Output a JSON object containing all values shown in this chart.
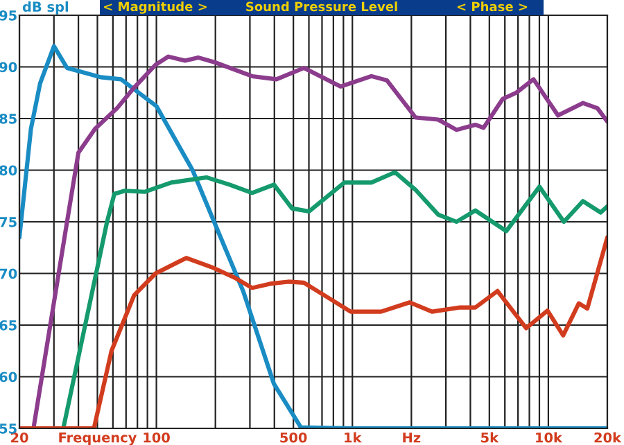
{
  "chart_data": {
    "type": "line",
    "title": "Sound Pressure Level",
    "ylabel": "dB spl",
    "annotations": [
      "< Magnitude >",
      "< Phase >"
    ],
    "log": "x",
    "grid": true,
    "legend": false,
    "marker": "none",
    "line_style": "solid",
    "xlim": [
      20,
      20000
    ],
    "ylim": [
      55,
      95
    ],
    "xticks": [
      {
        "value": 20,
        "label": "20"
      },
      {
        "value": 30,
        "label": null
      },
      {
        "value": 40,
        "label": null
      },
      {
        "value": 50,
        "label": "Frequency"
      },
      {
        "value": 60,
        "label": null
      },
      {
        "value": 70,
        "label": null
      },
      {
        "value": 80,
        "label": null
      },
      {
        "value": 90,
        "label": null
      },
      {
        "value": 100,
        "label": "100"
      },
      {
        "value": 200,
        "label": null
      },
      {
        "value": 300,
        "label": null
      },
      {
        "value": 400,
        "label": null
      },
      {
        "value": 500,
        "label": "500"
      },
      {
        "value": 600,
        "label": null
      },
      {
        "value": 700,
        "label": null
      },
      {
        "value": 800,
        "label": null
      },
      {
        "value": 900,
        "label": null
      },
      {
        "value": 1000,
        "label": "1k"
      },
      {
        "value": 2000,
        "label": "Hz"
      },
      {
        "value": 3000,
        "label": null
      },
      {
        "value": 4000,
        "label": null
      },
      {
        "value": 5000,
        "label": "5k"
      },
      {
        "value": 6000,
        "label": null
      },
      {
        "value": 7000,
        "label": null
      },
      {
        "value": 8000,
        "label": null
      },
      {
        "value": 9000,
        "label": null
      },
      {
        "value": 10000,
        "label": "10k"
      },
      {
        "value": 20000,
        "label": "20k"
      }
    ],
    "yticks": [
      55,
      60,
      65,
      70,
      75,
      80,
      85,
      90,
      95
    ],
    "series": [
      {
        "color": "#1a8cc4",
        "x": [
          20,
          22.9,
          25.5,
          30,
          35,
          52,
          66,
          100,
          153,
          197,
          277,
          398,
          546,
          1000,
          5000,
          20000
        ],
        "values": [
          73.5,
          84.0,
          88.4,
          92.0,
          89.9,
          89.0,
          88.8,
          86.2,
          80.0,
          75.0,
          68.3,
          59.3,
          55.1,
          55,
          55,
          55
        ]
      },
      {
        "color": "#8c3c8c",
        "x": [
          23.6,
          35,
          40,
          48.6,
          63,
          77,
          99,
          115,
          140,
          164,
          202,
          308,
          410,
          566,
          870,
          1250,
          1500,
          2100,
          2740,
          3400,
          4240,
          4670,
          5850,
          6860,
          8400,
          11200,
          15000,
          17800,
          20000
        ],
        "values": [
          55,
          75,
          81.7,
          84.0,
          86.0,
          88.0,
          90.2,
          91.0,
          90.6,
          90.9,
          90.4,
          89.1,
          88.8,
          89.9,
          88.1,
          89.1,
          88.7,
          85.1,
          84.9,
          83.9,
          84.4,
          84.1,
          86.9,
          87.5,
          88.8,
          85.3,
          86.5,
          86.0,
          84.7
        ]
      },
      {
        "color": "#149a6c",
        "x": [
          33.5,
          56,
          61,
          69,
          87,
          119,
          180,
          236,
          308,
          398,
          492,
          600,
          910,
          1250,
          1650,
          2100,
          2740,
          3400,
          4240,
          6100,
          9000,
          12000,
          15000,
          18500,
          20000
        ],
        "values": [
          55,
          75,
          77.7,
          78.0,
          77.9,
          78.8,
          79.3,
          78.6,
          77.8,
          78.6,
          76.3,
          76.0,
          78.8,
          78.8,
          79.8,
          78.1,
          75.7,
          75.0,
          76.1,
          74.1,
          78.4,
          75.0,
          77.0,
          75.9,
          76.5
        ]
      },
      {
        "color": "#d23c1e",
        "x": [
          20,
          48,
          59,
          77,
          99,
          142,
          192,
          250,
          308,
          380,
          470,
          566,
          760,
          980,
          1400,
          1960,
          2550,
          3500,
          4240,
          5500,
          7700,
          9900,
          11900,
          14300,
          15800,
          20000
        ],
        "values": [
          55,
          55,
          62.5,
          67.9,
          70.0,
          71.5,
          70.6,
          69.6,
          68.6,
          69.0,
          69.2,
          69.1,
          67.6,
          66.3,
          66.3,
          67.2,
          66.3,
          66.7,
          66.7,
          68.3,
          64.7,
          66.4,
          64.0,
          67.1,
          66.6,
          73.5
        ]
      }
    ]
  }
}
